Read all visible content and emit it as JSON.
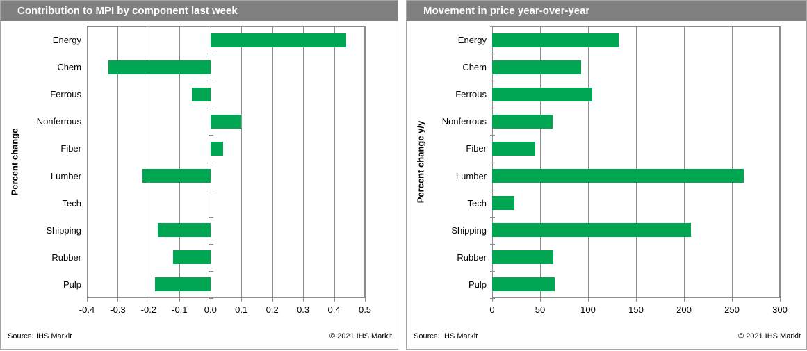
{
  "colors": {
    "bar_green": "#00A651",
    "titlebar_bg": "#808080",
    "titlebar_text": "#FFFFFF",
    "gridline": "#8C8C8C",
    "panel_border": "#A6A6A6",
    "text": "#000000"
  },
  "panels": [
    {
      "title": "Contribution to MPI by component last week",
      "y_axis_label": "Percent change",
      "source": "Source: IHS Markit",
      "copyright": "© 2021  IHS Markit"
    },
    {
      "title": "Movement in price year-over-year",
      "y_axis_label": "Percent change y/y",
      "source": "Source: IHS Markit",
      "copyright": "© 2021  IHS Markit"
    }
  ],
  "chart_data": [
    {
      "type": "bar",
      "orientation": "horizontal",
      "title": "Contribution to MPI by component last week",
      "categories": [
        "Energy",
        "Chem",
        "Ferrous",
        "Nonferrous",
        "Fiber",
        "Lumber",
        "Tech",
        "Shipping",
        "Rubber",
        "Pulp"
      ],
      "values": [
        0.44,
        -0.33,
        -0.06,
        0.1,
        0.04,
        -0.22,
        0.0,
        -0.17,
        -0.12,
        -0.18
      ],
      "xlabel": "",
      "ylabel": "Percent change",
      "xlim": [
        -0.4,
        0.5
      ],
      "xticks": [
        -0.4,
        -0.3,
        -0.2,
        -0.1,
        0.0,
        0.1,
        0.2,
        0.3,
        0.4,
        0.5
      ],
      "xtick_labels": [
        "-0.4",
        "-0.3",
        "-0.2",
        "-0.1",
        "0.0",
        "0.1",
        "0.2",
        "0.3",
        "0.4",
        "0.5"
      ],
      "grid": true,
      "legend": false,
      "bar_color": "#00A651"
    },
    {
      "type": "bar",
      "orientation": "horizontal",
      "title": "Movement in price year-over-year",
      "categories": [
        "Energy",
        "Chem",
        "Ferrous",
        "Nonferrous",
        "Fiber",
        "Lumber",
        "Tech",
        "Shipping",
        "Rubber",
        "Pulp"
      ],
      "values": [
        132,
        93,
        104,
        63,
        45,
        262,
        23,
        207,
        64,
        65
      ],
      "xlabel": "",
      "ylabel": "Percent change y/y",
      "xlim": [
        0,
        300
      ],
      "xticks": [
        0,
        50,
        100,
        150,
        200,
        250,
        300
      ],
      "xtick_labels": [
        "0",
        "50",
        "100",
        "150",
        "200",
        "250",
        "300"
      ],
      "grid": true,
      "legend": false,
      "bar_color": "#00A651"
    }
  ]
}
